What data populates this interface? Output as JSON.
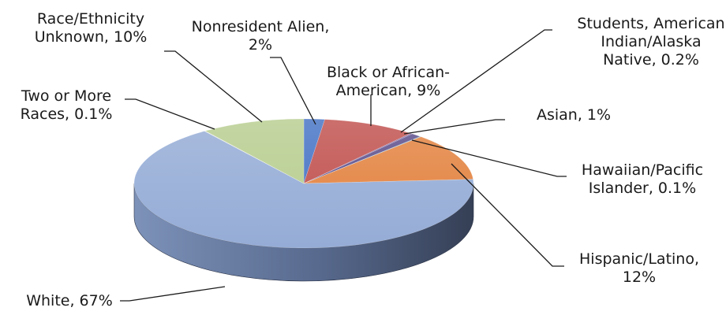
{
  "chart_data": {
    "type": "pie",
    "style": "3d",
    "categories": [
      "Nonresident Alien",
      "Black or African-American",
      "Students, American Indian/Alaska Native",
      "Asian",
      "Hawaiian/Pacific Islander",
      "Hispanic/Latino",
      "White",
      "Two or More Races",
      "Race/Ethnicity Unknown"
    ],
    "values": [
      2,
      9,
      0.2,
      1,
      0.1,
      12,
      67,
      0.1,
      10
    ],
    "value_labels": [
      "2%",
      "9%",
      "0.2%",
      "1%",
      "0.1%",
      "12%",
      "67%",
      "0.1%",
      "10%"
    ],
    "colors": [
      "#4472c4",
      "#c0504d",
      "#7e649e",
      "#5b4d8a",
      "#4bacc6",
      "#e3823f",
      "#95acd6",
      "#e6e6e6",
      "#b7cd8f"
    ],
    "label_lines": [
      [
        "Nonresident Alien,",
        "2%"
      ],
      [
        "Black or African-",
        "American, 9%"
      ],
      [
        "Students, American",
        "Indian/Alaska",
        "Native, 0.2%"
      ],
      [
        "Asian, 1%"
      ],
      [
        "Hawaiian/Pacific",
        "Islander, 0.1%"
      ],
      [
        "Hispanic/Latino,",
        "12%"
      ],
      [
        "White, 67%"
      ],
      [
        "Two or More",
        "Races, 0.1%"
      ],
      [
        "Race/Ethnicity",
        "Unknown, 10%"
      ]
    ],
    "title": "",
    "legend": "none"
  }
}
